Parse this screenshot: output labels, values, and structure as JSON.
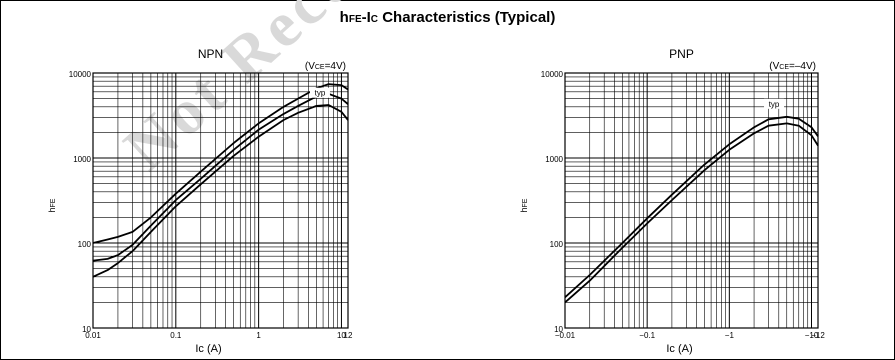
{
  "figure_title": {
    "prefix": "h",
    "prefix_sub": "FE",
    "middle": "-I",
    "middle_sub": "C",
    "rest": " Characteristics (Typical)"
  },
  "watermark": "Not Recommended",
  "chart_data": [
    {
      "type": "line",
      "title": "NPN",
      "condition": {
        "prefix": "(V",
        "sub": "CE",
        "rest": "=4V)"
      },
      "ylabel": {
        "main": "h",
        "sub": "FE"
      },
      "xlabel": "Ic  (A)",
      "x_scale": "log",
      "y_scale": "log",
      "xlim": [
        0.01,
        12
      ],
      "ylim": [
        10,
        10000
      ],
      "grid": true,
      "x_tick_labels": [
        {
          "value": 0.01,
          "label": "0.01"
        },
        {
          "value": 0.1,
          "label": "0.1"
        },
        {
          "value": 1,
          "label": "1"
        },
        {
          "value": 10,
          "label": "10"
        },
        {
          "value": 12,
          "label": "12"
        }
      ],
      "y_tick_labels": [
        {
          "value": 10,
          "label": "10"
        },
        {
          "value": 100,
          "label": "100"
        },
        {
          "value": 1000,
          "label": "1000"
        },
        {
          "value": 10000,
          "label": "10000"
        }
      ],
      "annotation": {
        "text": "typ",
        "x": 5.5,
        "y": 5400
      },
      "series": [
        {
          "x": [
            0.01,
            0.015,
            0.02,
            0.03,
            0.05,
            0.1,
            0.2,
            0.5,
            1,
            2,
            3,
            5,
            7,
            10,
            12
          ],
          "y": [
            100,
            110,
            118,
            135,
            200,
            380,
            690,
            1500,
            2550,
            4000,
            5000,
            6600,
            7400,
            7200,
            6400
          ]
        },
        {
          "x": [
            0.01,
            0.015,
            0.02,
            0.03,
            0.05,
            0.1,
            0.2,
            0.5,
            1,
            2,
            3,
            5,
            7,
            10,
            12
          ],
          "y": [
            62,
            65,
            72,
            95,
            160,
            320,
            570,
            1250,
            2150,
            3300,
            4100,
            5300,
            5700,
            5000,
            4300
          ]
        },
        {
          "x": [
            0.01,
            0.015,
            0.02,
            0.03,
            0.05,
            0.1,
            0.2,
            0.5,
            1,
            2,
            3,
            5,
            7,
            10,
            12
          ],
          "y": [
            40,
            48,
            58,
            80,
            135,
            270,
            490,
            1060,
            1780,
            2800,
            3400,
            4100,
            4200,
            3500,
            2800
          ]
        }
      ]
    },
    {
      "type": "line",
      "title": "PNP",
      "condition": {
        "prefix": "(V",
        "sub": "CE",
        "rest": "=–4V)"
      },
      "ylabel": {
        "main": "h",
        "sub": "FE"
      },
      "xlabel": "Ic  (A)",
      "x_scale": "log",
      "y_scale": "log",
      "xlim": [
        0.01,
        12
      ],
      "ylim": [
        10,
        10000
      ],
      "grid": true,
      "x_tick_labels": [
        {
          "value": 0.01,
          "label": "−0.01"
        },
        {
          "value": 0.1,
          "label": "−0.1"
        },
        {
          "value": 1,
          "label": "−1"
        },
        {
          "value": 10,
          "label": "−10"
        },
        {
          "value": 12,
          "label": "−12"
        }
      ],
      "y_tick_labels": [
        {
          "value": 10,
          "label": "10"
        },
        {
          "value": 100,
          "label": "100"
        },
        {
          "value": 1000,
          "label": "1000"
        },
        {
          "value": 10000,
          "label": "10000"
        }
      ],
      "annotation": {
        "text": "typ",
        "x": 3.5,
        "y": 4000
      },
      "series": [
        {
          "x": [
            0.01,
            0.02,
            0.05,
            0.1,
            0.2,
            0.5,
            1,
            2,
            3,
            5,
            7,
            10,
            12
          ],
          "y": [
            23,
            42,
            100,
            195,
            370,
            840,
            1450,
            2300,
            2850,
            3050,
            2900,
            2300,
            1800
          ]
        },
        {
          "x": [
            0.01,
            0.02,
            0.05,
            0.1,
            0.2,
            0.5,
            1,
            2,
            3,
            5,
            7,
            10,
            12
          ],
          "y": [
            20,
            36,
            88,
            170,
            320,
            720,
            1250,
            1950,
            2400,
            2550,
            2400,
            1850,
            1400
          ]
        }
      ]
    }
  ]
}
